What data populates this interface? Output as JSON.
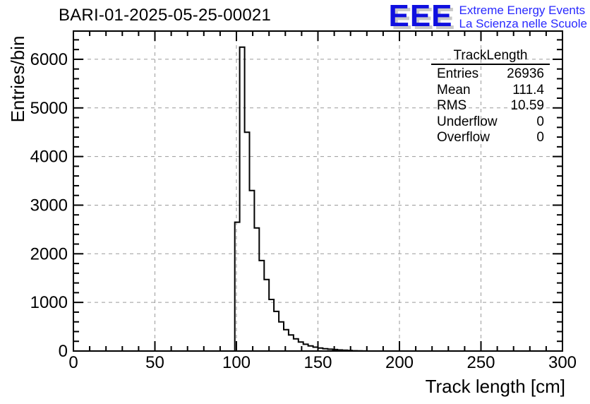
{
  "header": {
    "title": "BARI-01-2025-05-25-00021",
    "logo": {
      "letters": "EEE",
      "line1": "Extreme Energy Events",
      "line2": "La Scienza nelle Scuole",
      "letters_color": "#0f0fe0",
      "shadow_color": "#c8c8c8",
      "text_color": "#2929ff"
    }
  },
  "stats": {
    "title": "TrackLength",
    "rows": [
      {
        "label": "Entries",
        "value": "26936"
      },
      {
        "label": "Mean",
        "value": "111.4"
      },
      {
        "label": "RMS",
        "value": "10.59"
      },
      {
        "label": "Underflow",
        "value": "0"
      },
      {
        "label": "Overflow",
        "value": "0"
      }
    ]
  },
  "chart_data": {
    "type": "bar",
    "subtype": "step-histogram",
    "title": "BARI-01-2025-05-25-00021",
    "xlabel": "Track length [cm]",
    "ylabel": "Entries/bin",
    "xlim": [
      0,
      300
    ],
    "ylim": [
      0,
      6580
    ],
    "x_major_ticks": [
      0,
      50,
      100,
      150,
      200,
      250,
      300
    ],
    "x_minor_step": 10,
    "y_major_ticks": [
      0,
      1000,
      2000,
      3000,
      4000,
      5000,
      6000
    ],
    "y_minor_step": 200,
    "grid": {
      "on": true,
      "dashed": true,
      "color": "#9a9a9a"
    },
    "line_color": "#000000",
    "histogram": {
      "bin_start": 99,
      "bin_width": 3,
      "counts": [
        2650,
        6250,
        4500,
        3300,
        2530,
        1860,
        1470,
        1060,
        815,
        600,
        440,
        330,
        250,
        185,
        140,
        105,
        80,
        62,
        48,
        38,
        30,
        22,
        16,
        10,
        6,
        3,
        2
      ]
    },
    "stats_box": {
      "title": "TrackLength",
      "entries": 26936,
      "mean": 111.4,
      "rms": 10.59,
      "underflow": 0,
      "overflow": 0
    }
  }
}
